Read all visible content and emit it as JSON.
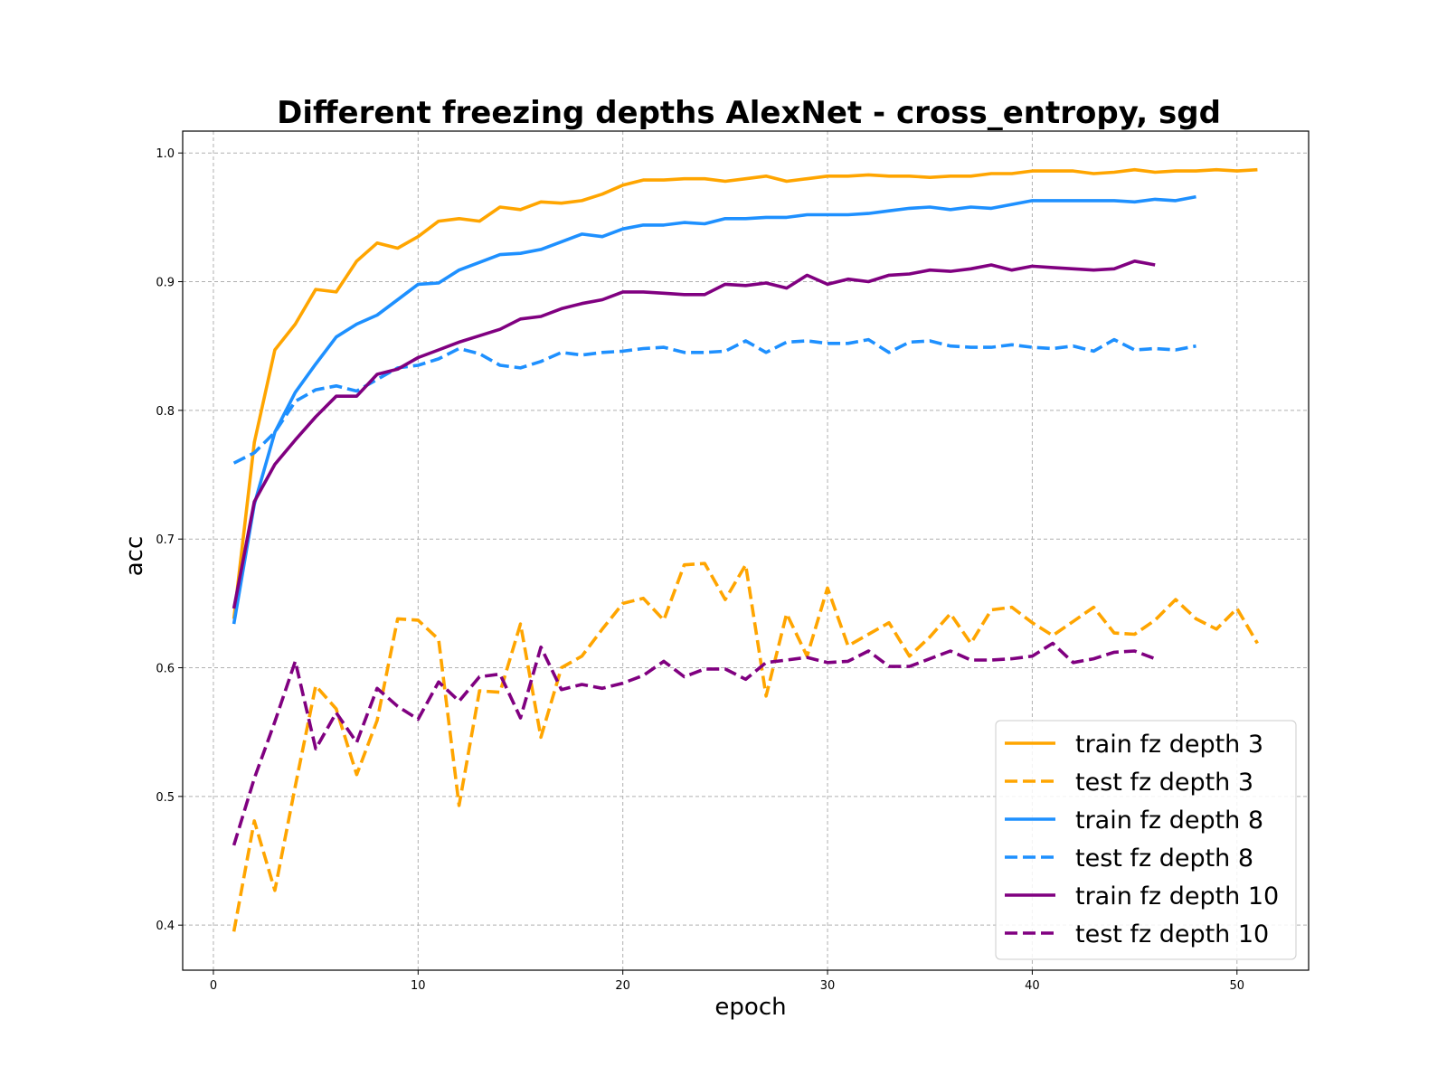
{
  "chart_data": {
    "type": "line",
    "title": "Different freezing depths AlexNet - cross_entropy, sgd",
    "xlabel": "epoch",
    "ylabel": "acc",
    "xlim": [
      -1.5,
      53.5
    ],
    "ylim": [
      0.365,
      1.017
    ],
    "xticks": [
      0,
      10,
      20,
      30,
      40,
      50
    ],
    "yticks": [
      0.4,
      0.5,
      0.6,
      0.7,
      0.8,
      0.9,
      1.0
    ],
    "grid": true,
    "legend_position": "lower-right",
    "series": [
      {
        "name": "train fz depth 3",
        "color": "#FFA500",
        "dashed": false,
        "x": [
          1,
          2,
          3,
          4,
          5,
          6,
          7,
          8,
          9,
          10,
          11,
          12,
          13,
          14,
          15,
          16,
          17,
          18,
          19,
          20,
          21,
          22,
          23,
          24,
          25,
          26,
          27,
          28,
          29,
          30,
          31,
          32,
          33,
          34,
          35,
          36,
          37,
          38,
          39,
          40,
          41,
          42,
          43,
          44,
          45,
          46,
          47,
          48,
          49,
          50,
          51
        ],
        "y": [
          0.638,
          0.775,
          0.847,
          0.867,
          0.894,
          0.892,
          0.916,
          0.93,
          0.926,
          0.935,
          0.947,
          0.949,
          0.947,
          0.958,
          0.956,
          0.962,
          0.961,
          0.963,
          0.968,
          0.975,
          0.979,
          0.979,
          0.98,
          0.98,
          0.978,
          0.98,
          0.982,
          0.978,
          0.98,
          0.982,
          0.982,
          0.983,
          0.982,
          0.982,
          0.981,
          0.982,
          0.982,
          0.984,
          0.984,
          0.986,
          0.986,
          0.986,
          0.984,
          0.985,
          0.987,
          0.985,
          0.986,
          0.986,
          0.987,
          0.986,
          0.987
        ]
      },
      {
        "name": "test fz depth 3",
        "color": "#FFA500",
        "dashed": true,
        "x": [
          1,
          2,
          3,
          4,
          5,
          6,
          7,
          8,
          9,
          10,
          11,
          12,
          13,
          14,
          15,
          16,
          17,
          18,
          19,
          20,
          21,
          22,
          23,
          24,
          25,
          26,
          27,
          28,
          29,
          30,
          31,
          32,
          33,
          34,
          35,
          36,
          37,
          38,
          39,
          40,
          41,
          42,
          43,
          44,
          45,
          46,
          47,
          48,
          49,
          50,
          51
        ],
        "y": [
          0.395,
          0.481,
          0.427,
          0.508,
          0.586,
          0.568,
          0.517,
          0.559,
          0.638,
          0.637,
          0.622,
          0.493,
          0.582,
          0.581,
          0.634,
          0.546,
          0.6,
          0.609,
          0.63,
          0.65,
          0.654,
          0.637,
          0.68,
          0.681,
          0.653,
          0.68,
          0.578,
          0.642,
          0.609,
          0.662,
          0.617,
          0.626,
          0.635,
          0.609,
          0.624,
          0.642,
          0.619,
          0.645,
          0.647,
          0.635,
          0.625,
          0.636,
          0.647,
          0.627,
          0.626,
          0.637,
          0.653,
          0.638,
          0.63,
          0.646,
          0.619
        ]
      },
      {
        "name": "train fz depth 8",
        "color": "#1E90FF",
        "dashed": false,
        "x": [
          1,
          2,
          3,
          4,
          5,
          6,
          7,
          8,
          9,
          10,
          11,
          12,
          13,
          14,
          15,
          16,
          17,
          18,
          19,
          20,
          21,
          22,
          23,
          24,
          25,
          26,
          27,
          28,
          29,
          30,
          31,
          32,
          33,
          34,
          35,
          36,
          37,
          38,
          39,
          40,
          41,
          42,
          43,
          44,
          45,
          46,
          47,
          48
        ],
        "y": [
          0.634,
          0.727,
          0.783,
          0.814,
          0.836,
          0.857,
          0.867,
          0.874,
          0.886,
          0.898,
          0.899,
          0.909,
          0.915,
          0.921,
          0.922,
          0.925,
          0.931,
          0.937,
          0.935,
          0.941,
          0.944,
          0.944,
          0.946,
          0.945,
          0.949,
          0.949,
          0.95,
          0.95,
          0.952,
          0.952,
          0.952,
          0.953,
          0.955,
          0.957,
          0.958,
          0.956,
          0.958,
          0.957,
          0.96,
          0.963,
          0.963,
          0.963,
          0.963,
          0.963,
          0.962,
          0.964,
          0.963,
          0.966
        ]
      },
      {
        "name": "test fz depth 8",
        "color": "#1E90FF",
        "dashed": true,
        "x": [
          1,
          2,
          3,
          4,
          5,
          6,
          7,
          8,
          9,
          10,
          11,
          12,
          13,
          14,
          15,
          16,
          17,
          18,
          19,
          20,
          21,
          22,
          23,
          24,
          25,
          26,
          27,
          28,
          29,
          30,
          31,
          32,
          33,
          34,
          35,
          36,
          37,
          38,
          39,
          40,
          41,
          42,
          43,
          44,
          45,
          46,
          47,
          48
        ],
        "y": [
          0.759,
          0.767,
          0.783,
          0.807,
          0.816,
          0.819,
          0.815,
          0.824,
          0.833,
          0.835,
          0.84,
          0.848,
          0.844,
          0.835,
          0.833,
          0.838,
          0.845,
          0.843,
          0.845,
          0.846,
          0.848,
          0.849,
          0.845,
          0.845,
          0.846,
          0.854,
          0.845,
          0.853,
          0.854,
          0.852,
          0.852,
          0.855,
          0.845,
          0.853,
          0.854,
          0.85,
          0.849,
          0.849,
          0.851,
          0.849,
          0.848,
          0.85,
          0.846,
          0.855,
          0.847,
          0.848,
          0.847,
          0.85
        ]
      },
      {
        "name": "train fz depth 10",
        "color": "#800080",
        "dashed": false,
        "x": [
          1,
          2,
          3,
          4,
          5,
          6,
          7,
          8,
          9,
          10,
          11,
          12,
          13,
          14,
          15,
          16,
          17,
          18,
          19,
          20,
          21,
          22,
          23,
          24,
          25,
          26,
          27,
          28,
          29,
          30,
          31,
          32,
          33,
          34,
          35,
          36,
          37,
          38,
          39,
          40,
          41,
          42,
          43,
          44,
          45,
          46
        ],
        "y": [
          0.646,
          0.729,
          0.758,
          0.777,
          0.795,
          0.811,
          0.811,
          0.828,
          0.832,
          0.841,
          0.847,
          0.853,
          0.858,
          0.863,
          0.871,
          0.873,
          0.879,
          0.883,
          0.886,
          0.892,
          0.892,
          0.891,
          0.89,
          0.89,
          0.898,
          0.897,
          0.899,
          0.895,
          0.905,
          0.898,
          0.902,
          0.9,
          0.905,
          0.906,
          0.909,
          0.908,
          0.91,
          0.913,
          0.909,
          0.912,
          0.911,
          0.91,
          0.909,
          0.91,
          0.916,
          0.913
        ]
      },
      {
        "name": "test fz depth 10",
        "color": "#800080",
        "dashed": true,
        "x": [
          1,
          2,
          3,
          4,
          5,
          6,
          7,
          8,
          9,
          10,
          11,
          12,
          13,
          14,
          15,
          16,
          17,
          18,
          19,
          20,
          21,
          22,
          23,
          24,
          25,
          26,
          27,
          28,
          29,
          30,
          31,
          32,
          33,
          34,
          35,
          36,
          37,
          38,
          39,
          40,
          41,
          42,
          43,
          44,
          45,
          46
        ],
        "y": [
          0.462,
          0.514,
          0.558,
          0.605,
          0.537,
          0.565,
          0.542,
          0.584,
          0.57,
          0.56,
          0.589,
          0.574,
          0.593,
          0.595,
          0.561,
          0.616,
          0.583,
          0.587,
          0.584,
          0.588,
          0.594,
          0.605,
          0.593,
          0.599,
          0.599,
          0.591,
          0.604,
          0.606,
          0.608,
          0.604,
          0.605,
          0.613,
          0.601,
          0.601,
          0.607,
          0.613,
          0.606,
          0.606,
          0.607,
          0.609,
          0.619,
          0.604,
          0.607,
          0.612,
          0.613,
          0.607
        ]
      }
    ]
  }
}
